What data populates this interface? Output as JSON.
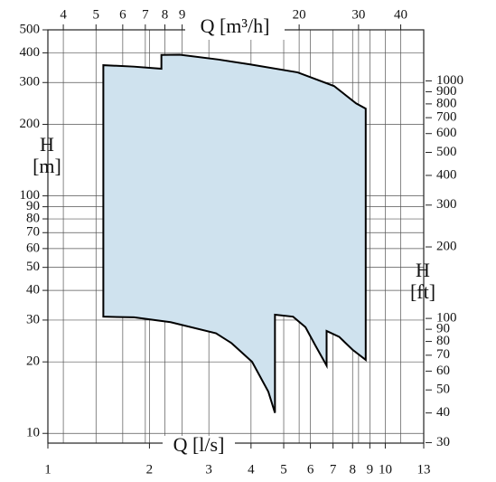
{
  "chart_data": {
    "type": "area",
    "x_label": "Q [l/s]",
    "x2_label": "Q [m³/h]",
    "y_label": [
      "H",
      "[m]"
    ],
    "y2_label": [
      "H",
      "[ft]"
    ],
    "log_x": true,
    "log_y": true,
    "grid": true,
    "xlim": [
      1,
      13
    ],
    "xticks": [
      1,
      2,
      3,
      4,
      5,
      6,
      7,
      8,
      9,
      10,
      13
    ],
    "x2lim": [
      3.6,
      46.8
    ],
    "x2ticks": [
      4,
      5,
      6,
      7,
      8,
      9,
      20,
      30,
      40
    ],
    "ylim": [
      9.1,
      500
    ],
    "yticks": [
      10,
      20,
      30,
      40,
      50,
      60,
      70,
      80,
      90,
      100,
      200,
      300,
      400,
      500
    ],
    "y2lim": [
      29.86,
      1640
    ],
    "y2ticks": [
      30,
      40,
      50,
      60,
      70,
      80,
      90,
      100,
      200,
      300,
      400,
      500,
      600,
      700,
      800,
      900,
      1000
    ],
    "series": [
      {
        "color": "#cfe2ee",
        "x": [
          1.46,
          1.46,
          1.8,
          2.17,
          2.17,
          2.46,
          3.2,
          3.96,
          5.5,
          7.05,
          8.2,
          8.75,
          8.75,
          8.0,
          7.3,
          6.7,
          6.7,
          6.2,
          5.8,
          5.33,
          4.71,
          4.71,
          4.5,
          4.03,
          3.5,
          3.15,
          2.31,
          1.8
        ],
        "values": [
          31,
          355,
          350,
          343,
          392,
          393,
          375,
          358,
          331,
          290,
          245,
          233,
          20.4,
          22.5,
          25.5,
          27,
          19.3,
          23.5,
          28,
          31,
          31.6,
          12.2,
          15,
          20,
          24,
          26.4,
          29.4,
          30.8
        ]
      }
    ]
  }
}
